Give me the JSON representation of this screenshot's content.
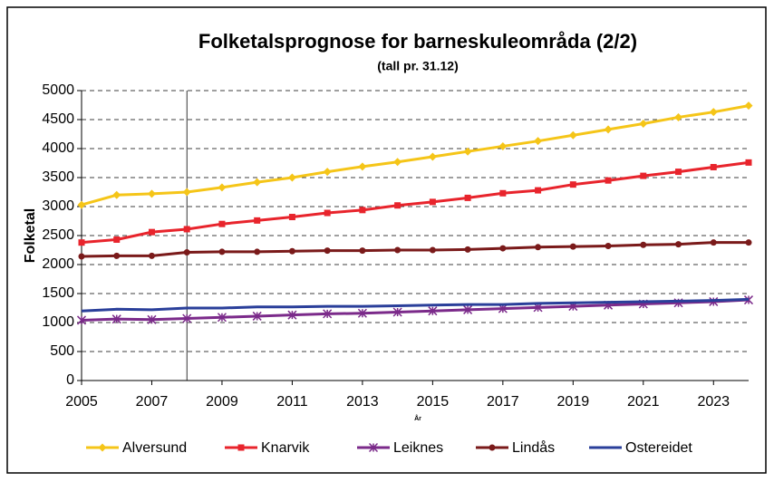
{
  "chart_data": {
    "type": "line",
    "title": "Folketalsprognose for barneskuleområda (2/2)",
    "subtitle": "(tall pr. 31.12)",
    "x_label": "År",
    "y_label": "Folketal",
    "x": [
      2005,
      2006,
      2007,
      2008,
      2009,
      2010,
      2011,
      2012,
      2013,
      2014,
      2015,
      2016,
      2017,
      2018,
      2019,
      2020,
      2021,
      2022,
      2023,
      2024
    ],
    "xlim": [
      2005,
      2024
    ],
    "xticks": [
      2005,
      2007,
      2009,
      2011,
      2013,
      2015,
      2017,
      2019,
      2021,
      2023
    ],
    "ylim": [
      0,
      5000
    ],
    "yticks": [
      0,
      500,
      1000,
      1500,
      2000,
      2500,
      3000,
      3500,
      4000,
      4500,
      5000
    ],
    "grid": true,
    "vline": 2008,
    "legend": "bottom",
    "series": [
      {
        "name": "Alversund",
        "color": "#f5c518",
        "marker": "diamond",
        "values": [
          3030,
          3200,
          3220,
          3250,
          3330,
          3420,
          3500,
          3600,
          3690,
          3770,
          3860,
          3950,
          4040,
          4130,
          4230,
          4330,
          4430,
          4540,
          4630,
          4740
        ]
      },
      {
        "name": "Knarvik",
        "color": "#e8242c",
        "marker": "square",
        "values": [
          2380,
          2430,
          2560,
          2610,
          2700,
          2760,
          2820,
          2890,
          2940,
          3020,
          3080,
          3150,
          3230,
          3280,
          3380,
          3450,
          3530,
          3600,
          3680,
          3760
        ]
      },
      {
        "name": "Leiknes",
        "color": "#7b2a8a",
        "marker": "star",
        "values": [
          1040,
          1060,
          1050,
          1070,
          1090,
          1110,
          1130,
          1150,
          1160,
          1180,
          1200,
          1220,
          1240,
          1260,
          1280,
          1300,
          1320,
          1340,
          1360,
          1390
        ]
      },
      {
        "name": "Lindås",
        "color": "#7a1a1a",
        "marker": "circle",
        "values": [
          2140,
          2150,
          2150,
          2210,
          2220,
          2220,
          2230,
          2240,
          2240,
          2250,
          2250,
          2260,
          2280,
          2300,
          2310,
          2320,
          2340,
          2350,
          2380,
          2380
        ]
      },
      {
        "name": "Ostereidet",
        "color": "#2a3f9a",
        "marker": "none",
        "values": [
          1200,
          1230,
          1220,
          1250,
          1250,
          1270,
          1270,
          1280,
          1280,
          1290,
          1300,
          1310,
          1310,
          1330,
          1340,
          1350,
          1360,
          1370,
          1380,
          1400
        ]
      }
    ]
  }
}
